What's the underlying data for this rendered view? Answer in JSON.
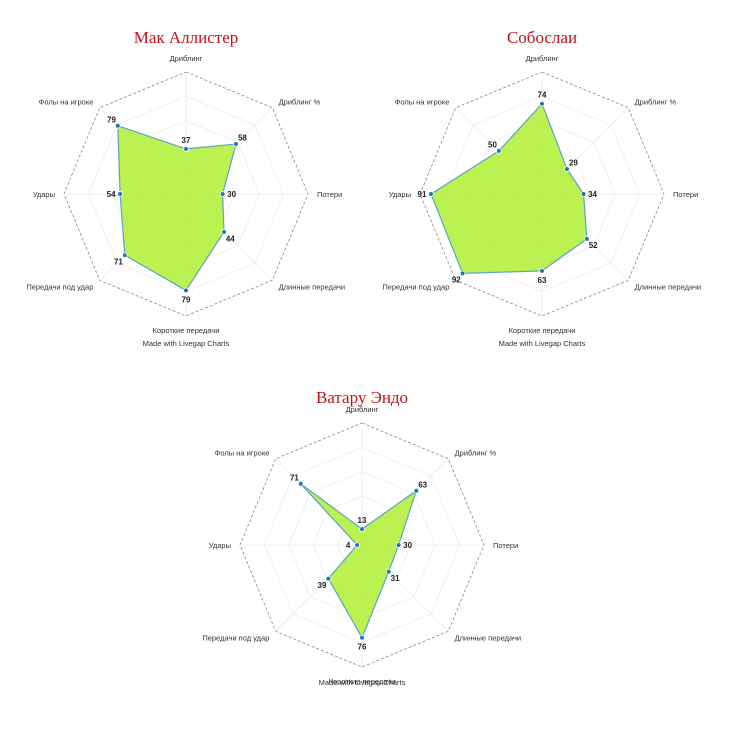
{
  "chart_data": [
    {
      "type": "radar",
      "title": "Мак Аллистер",
      "axes": [
        "Дриблинг",
        "Дриблинг %",
        "Потери",
        "Длинные передачи",
        "Короткие передачи",
        "Передачи под удар",
        "Удары",
        "Фолы на игроке"
      ],
      "series": [
        {
          "values": [
            37,
            58,
            30,
            44,
            79,
            71,
            54,
            79
          ]
        }
      ],
      "value_labels": [
        "37",
        "58",
        "30",
        "44",
        "79",
        "71",
        "54",
        "79"
      ],
      "rmax": 100,
      "credit": "Made with Livegap Charts",
      "fill_color": "#b5f03f",
      "line_color": "#5ba3c8",
      "point_color": "#1f77b4"
    },
    {
      "type": "radar",
      "title": "Собослаи",
      "axes": [
        "Дриблинг",
        "Дриблинг %",
        "Потери",
        "Длинные передачи",
        "Короткие передачи",
        "Передачи под удар",
        "Удары",
        "Фолы на игроке"
      ],
      "series": [
        {
          "values": [
            74,
            29,
            34,
            52,
            63,
            92,
            91,
            50
          ]
        }
      ],
      "value_labels": [
        "74",
        "29",
        "34",
        "52",
        "63",
        "92",
        "91",
        "50"
      ],
      "rmax": 100,
      "credit": "Made with Livegap Charts",
      "fill_color": "#b5f03f",
      "line_color": "#5ba3c8",
      "point_color": "#1f77b4"
    },
    {
      "type": "radar",
      "title": "Ватару Эндо",
      "axes": [
        "Дриблинг",
        "Дриблинг %",
        "Потери",
        "Длинные передачи",
        "Короткие передачи",
        "Передачи под удар",
        "Удары",
        "Фолы на игроке"
      ],
      "series": [
        {
          "values": [
            13,
            63,
            30,
            31,
            76,
            39,
            4,
            71
          ]
        }
      ],
      "value_labels": [
        "13",
        "63",
        "30",
        "31",
        "76",
        "39",
        "4",
        "71"
      ],
      "rmax": 100,
      "credit": "Made with Livegap Charts",
      "fill_color": "#b5f03f",
      "line_color": "#5ba3c8",
      "point_color": "#1f77b4"
    }
  ]
}
